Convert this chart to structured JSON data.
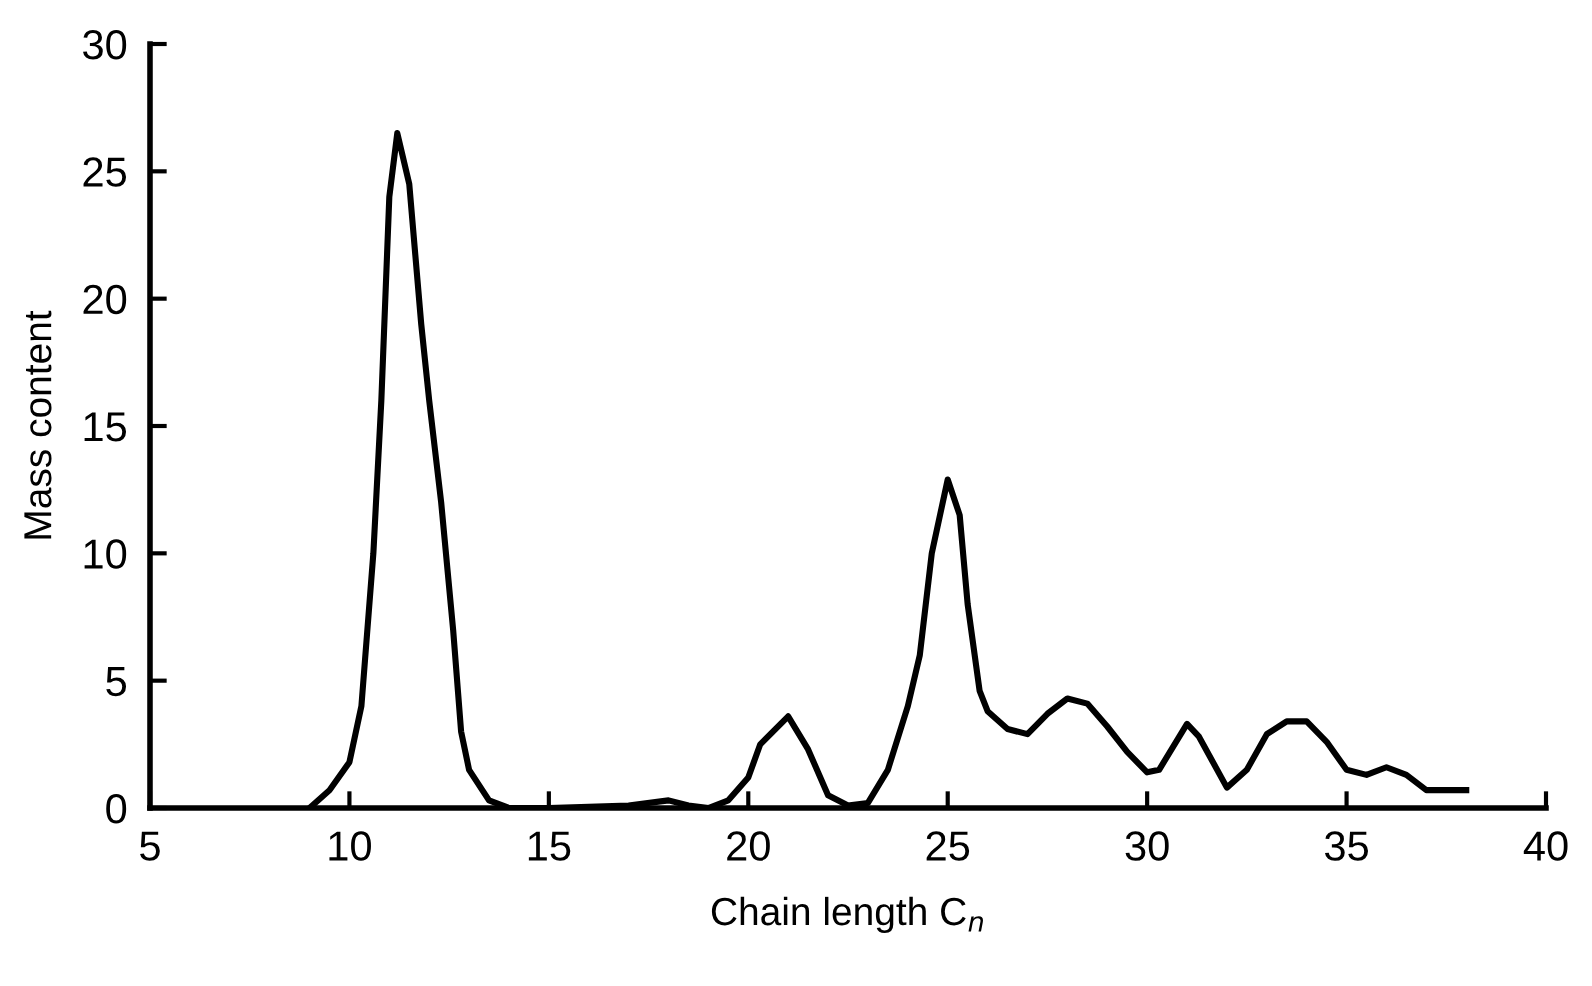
{
  "chart_data": {
    "type": "line",
    "xlabel": "Chain length C$_{n}$",
    "ylabel": "Mass content",
    "x": [
      9,
      9.5,
      10,
      10.3,
      10.6,
      10.8,
      11,
      11.2,
      11.5,
      11.8,
      12,
      12.3,
      12.6,
      12.8,
      13,
      13.5,
      14,
      15,
      16,
      17,
      18,
      18.5,
      19,
      19.5,
      20,
      20.3,
      21,
      21.5,
      22,
      22.5,
      23,
      23.5,
      24,
      24.3,
      24.6,
      25,
      25.3,
      25.5,
      25.8,
      26,
      26.5,
      27,
      27.5,
      28,
      28.5,
      29,
      29.5,
      30,
      30.3,
      31,
      31.3,
      32,
      32.5,
      33,
      33.5,
      34,
      34.5,
      35,
      35.5,
      36,
      36.5,
      37,
      37.5,
      38
    ],
    "series": [
      {
        "color": "#000000",
        "values": [
          0,
          0.7,
          1.8,
          4,
          10,
          16,
          24,
          26.5,
          24.5,
          19,
          16,
          12,
          7,
          3,
          1.5,
          0.3,
          0,
          0,
          0.05,
          0.1,
          0.3,
          0.1,
          0,
          0.3,
          1.2,
          2.5,
          3.6,
          2.3,
          0.5,
          0.1,
          0.2,
          1.5,
          4,
          6,
          10,
          12.9,
          11.5,
          8,
          4.6,
          3.8,
          3.1,
          2.9,
          3.7,
          4.3,
          4.1,
          3.2,
          2.2,
          1.4,
          1.5,
          3.3,
          2.8,
          0.8,
          1.5,
          2.9,
          3.4,
          3.4,
          2.6,
          1.5,
          1.3,
          1.6,
          1.3,
          0.7,
          0.7,
          0.7
        ]
      }
    ],
    "xlim": [
      5,
      40
    ],
    "xticks": [
      5,
      10,
      15,
      20,
      25,
      30,
      35,
      40
    ],
    "ylim": [
      0,
      30
    ],
    "yticks": [
      0,
      5,
      10,
      15,
      20,
      25,
      30
    ],
    "grid": false,
    "legend": false,
    "marker": "none",
    "line_style": "solid"
  }
}
